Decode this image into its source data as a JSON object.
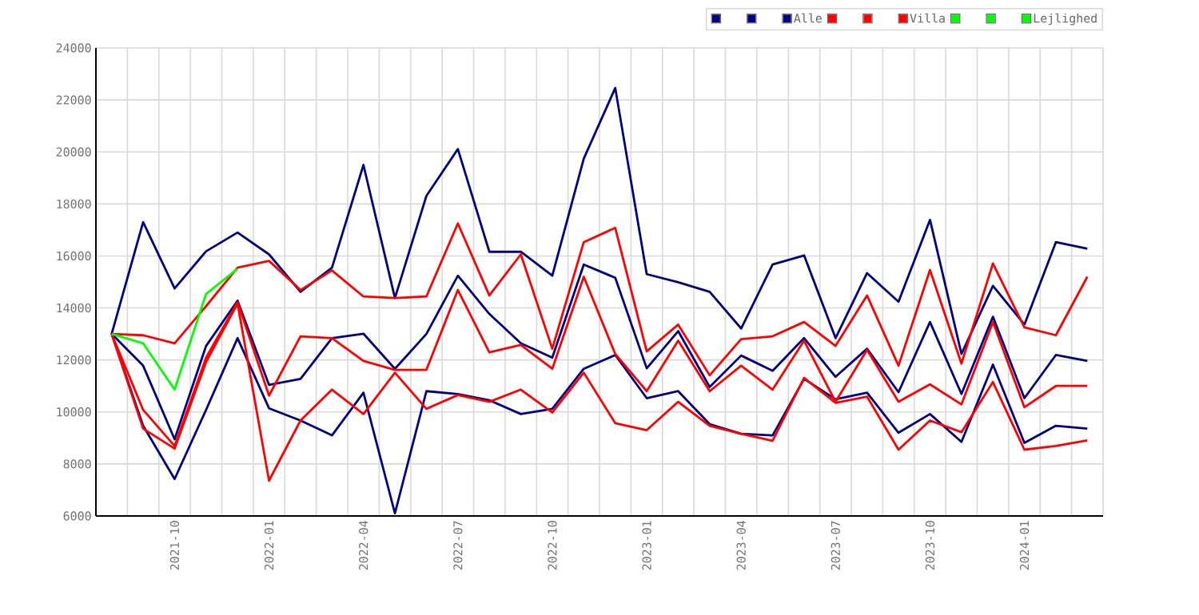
{
  "chart_data": {
    "type": "line",
    "categories": [
      null,
      null,
      "2021-10",
      null,
      null,
      "2022-01",
      null,
      null,
      "2022-04",
      null,
      null,
      "2022-07",
      null,
      null,
      "2022-10",
      null,
      null,
      "2023-01",
      null,
      null,
      "2023-04",
      null,
      null,
      "2023-07",
      null,
      null,
      "2023-10",
      null,
      null,
      "2024-01",
      null,
      null
    ],
    "series": [
      {
        "color": "#000080",
        "values": [
          13000,
          17300,
          14750,
          16180,
          16900,
          16060,
          14620,
          15550,
          19500,
          14380,
          18310,
          20110,
          16160,
          16160,
          15240,
          19740,
          22460,
          15300,
          14990,
          14620,
          13210,
          15670,
          16020,
          12840,
          15340,
          14240,
          17390,
          12230,
          14850,
          13360,
          16530,
          16280
        ]
      },
      {
        "color": "#000080",
        "values": [
          13000,
          11780,
          8950,
          12540,
          14280,
          11040,
          11270,
          12840,
          13010,
          11660,
          13000,
          15240,
          13770,
          12640,
          12090,
          15670,
          15160,
          11680,
          13110,
          10960,
          12170,
          11580,
          12840,
          11350,
          12430,
          10760,
          13460,
          10690,
          13660,
          10530,
          12190,
          11960
        ]
      },
      {
        "name": "Alle",
        "color": "#000080",
        "values": [
          13000,
          9470,
          7420,
          10080,
          12840,
          10140,
          9670,
          9100,
          10740,
          6100,
          10800,
          10690,
          10450,
          9920,
          10120,
          11660,
          12190,
          10530,
          10800,
          9530,
          9160,
          9100,
          11270,
          10490,
          10740,
          9200,
          9920,
          8850,
          11820,
          8810,
          9470,
          9360
        ]
      },
      {
        "color": "#ff0000",
        "values": [
          13000,
          12950,
          12640,
          14070,
          15550,
          15810,
          14690,
          15440,
          14440,
          14380,
          14440,
          17250,
          14480,
          16060,
          12430,
          16530,
          17080,
          12330,
          13360,
          11410,
          12800,
          12910,
          13460,
          12540,
          14480,
          11780,
          15460,
          11860,
          15710,
          13250,
          12950,
          15200
        ]
      },
      {
        "color": "#ff0000",
        "values": [
          13000,
          10080,
          8690,
          12090,
          14220,
          10630,
          12910,
          12840,
          11960,
          11620,
          11620,
          14690,
          12290,
          12580,
          11660,
          15200,
          12230,
          10800,
          12740,
          10800,
          11780,
          10860,
          12740,
          10390,
          12390,
          10390,
          11060,
          10290,
          13460,
          10180,
          11000,
          11000
        ]
      },
      {
        "name": "Villa",
        "color": "#ff0000",
        "values": [
          13000,
          9360,
          8590,
          11920,
          14170,
          7360,
          9670,
          10860,
          9920,
          11510,
          10120,
          10650,
          10390,
          10860,
          9980,
          11510,
          9570,
          9300,
          10390,
          9470,
          9160,
          8890,
          11310,
          10350,
          10590,
          8550,
          9670,
          9220,
          11150,
          8550,
          8690,
          8910
        ]
      },
      {
        "color": "#00ff00",
        "values": [
          13000,
          12640,
          10860,
          14540,
          15500,
          null,
          null,
          null,
          null,
          null,
          null,
          null,
          null,
          null,
          null,
          null,
          null,
          null,
          null,
          null,
          null,
          null,
          null,
          null,
          null,
          null,
          null,
          null,
          null,
          null,
          null,
          null
        ]
      },
      {
        "color": "#00ff00",
        "values": [
          null,
          null,
          null,
          null,
          null,
          null,
          null,
          null,
          null,
          null,
          null,
          null,
          null,
          null,
          null,
          null,
          null,
          null,
          null,
          null,
          null,
          null,
          null,
          null,
          null,
          null,
          null,
          null,
          null,
          null,
          null,
          null
        ]
      },
      {
        "name": "Lejlighed",
        "color": "#00ff00",
        "values": [
          null,
          null,
          null,
          null,
          null,
          null,
          null,
          null,
          null,
          null,
          null,
          null,
          null,
          null,
          null,
          null,
          null,
          null,
          null,
          null,
          null,
          null,
          null,
          null,
          null,
          null,
          null,
          null,
          null,
          null,
          null,
          null
        ]
      }
    ],
    "ylim": [
      6000,
      24000
    ],
    "yticks": [
      6000,
      8000,
      10000,
      12000,
      14000,
      16000,
      18000,
      20000,
      22000,
      24000
    ],
    "grid": true,
    "legend": "top right"
  }
}
